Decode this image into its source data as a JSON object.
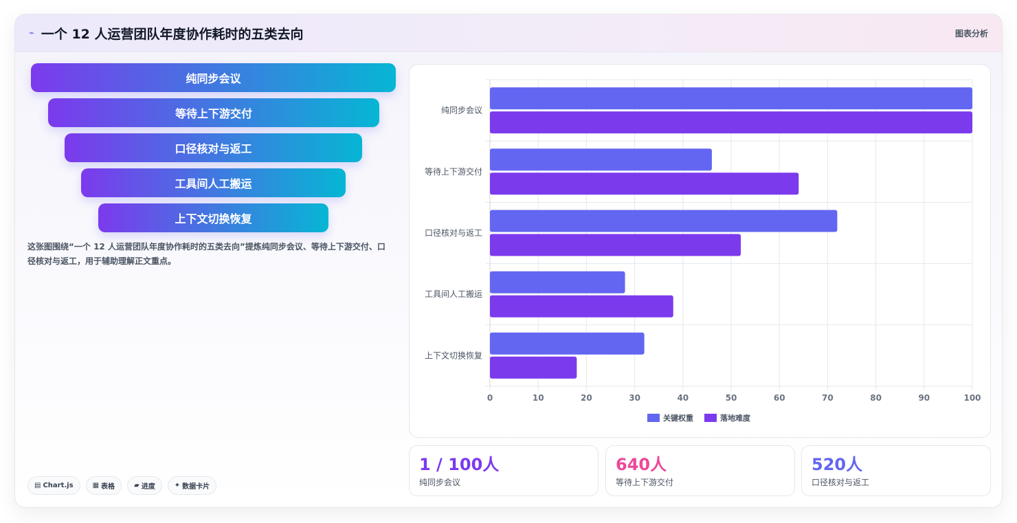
{
  "header": {
    "title": "一个 12 人运营团队年度协作耗时的五类去向",
    "tag": "图表分析"
  },
  "funnel": {
    "steps": [
      "纯同步会议",
      "等待上下游交付",
      "口径核对与返工",
      "工具间人工搬运",
      "上下文切换恢复"
    ]
  },
  "description": "这张图围绕“一个 12 人运营团队年度协作耗时的五类去向”提炼纯同步会议、等待上下游交付、口径核对与返工，用于辅助理解正文重点。",
  "tags": [
    {
      "icon": "▤",
      "label": "Chart.js"
    },
    {
      "icon": "▦",
      "label": "表格"
    },
    {
      "icon": "▰",
      "label": "进度"
    },
    {
      "icon": "✦",
      "label": "数据卡片"
    }
  ],
  "stats": [
    {
      "value": "1 / 100人",
      "label": "纯同步会议",
      "color": "#7c3aed"
    },
    {
      "value": "640人",
      "label": "等待上下游交付",
      "color": "#ec4899"
    },
    {
      "value": "520人",
      "label": "口径核对与返工",
      "color": "#6366f1"
    }
  ],
  "chart_data": {
    "type": "bar",
    "orientation": "horizontal",
    "categories": [
      "纯同步会议",
      "等待上下游交付",
      "口径核对与返工",
      "工具间人工搬运",
      "上下文切换恢复"
    ],
    "series": [
      {
        "name": "关键权重",
        "values": [
          100,
          46,
          72,
          28,
          32
        ],
        "color": "#6366f1"
      },
      {
        "name": "落地难度",
        "values": [
          100,
          64,
          52,
          38,
          18
        ],
        "color": "#7c3aed"
      }
    ],
    "xlim": [
      0,
      100
    ],
    "xticks": [
      0,
      10,
      20,
      30,
      40,
      50,
      60,
      70,
      80,
      90,
      100
    ],
    "grid": true,
    "legend": "bottom"
  }
}
